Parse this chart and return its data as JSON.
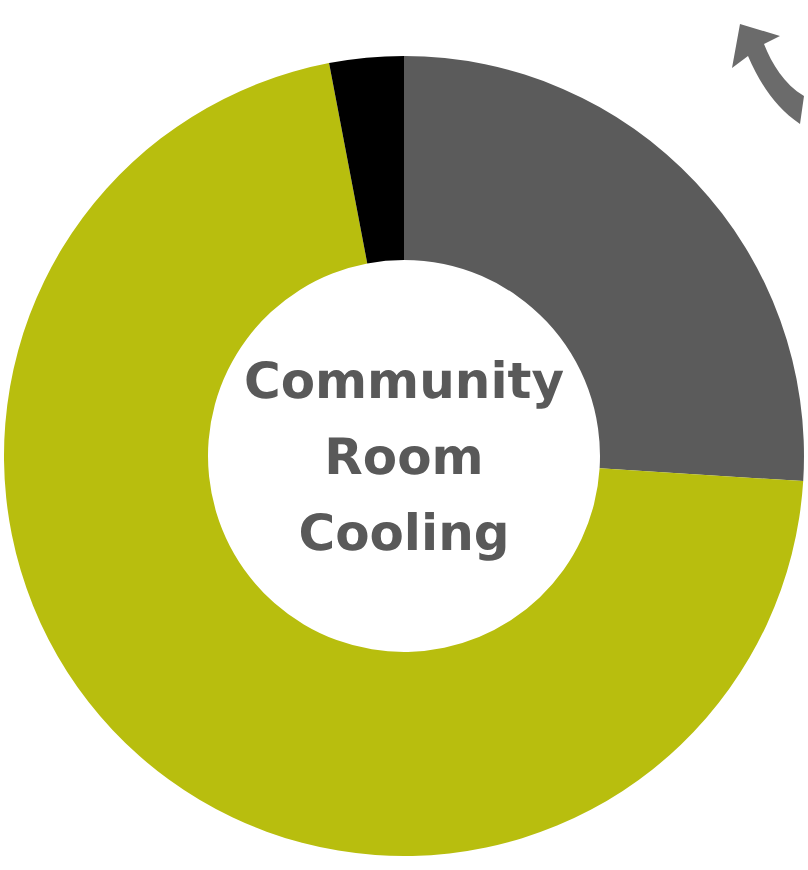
{
  "chart_data": {
    "type": "donut",
    "title": "Community Room Cooling",
    "categories": [
      null,
      null,
      null
    ],
    "values": [
      26,
      71,
      3
    ],
    "colors": [
      "#5b5b5b",
      "#b8be0e",
      "#000000"
    ]
  }
}
